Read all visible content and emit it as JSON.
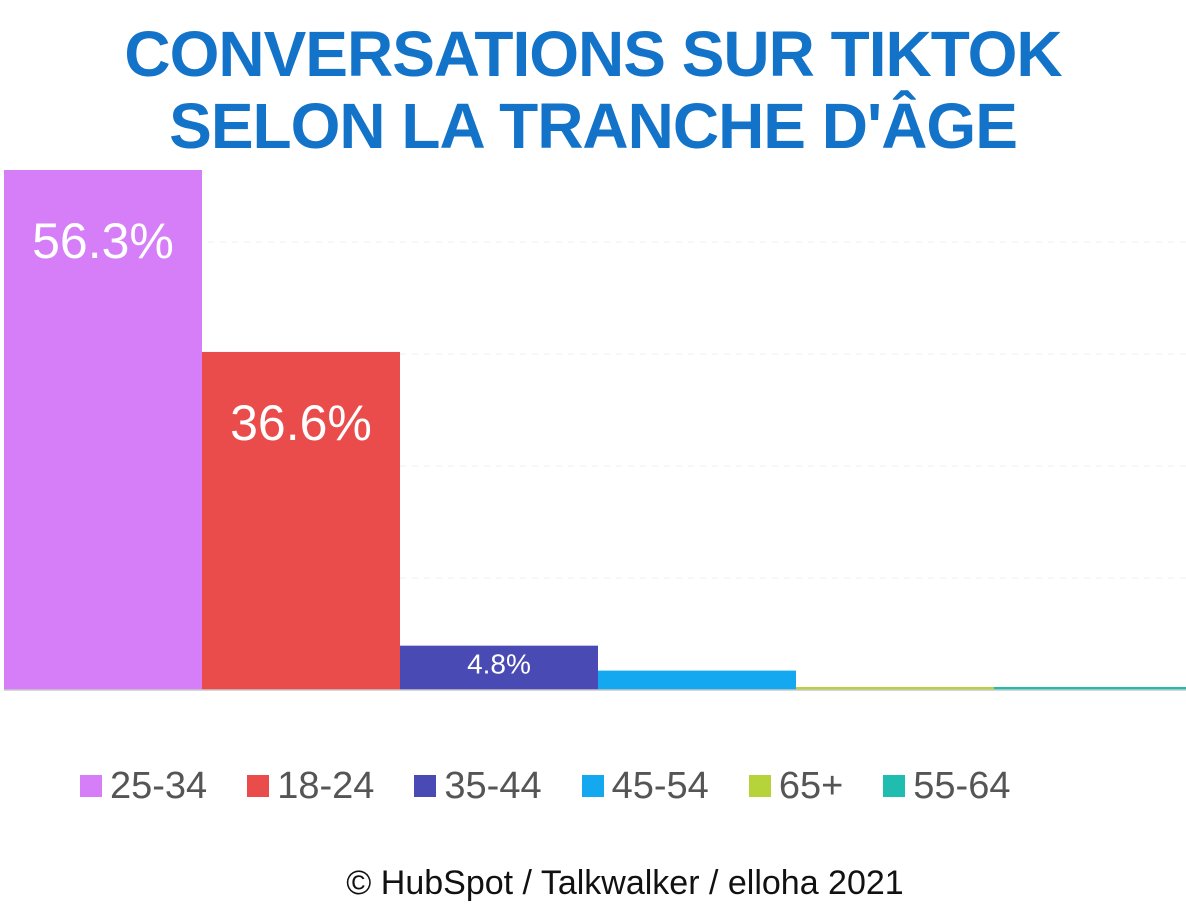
{
  "title": {
    "line1": "CONVERSATIONS SUR TIKTOK",
    "line2": "SELON LA TRANCHE D'ÂGE"
  },
  "chart_data": {
    "type": "bar",
    "categories": [
      "25-34",
      "18-24",
      "35-44",
      "45-54",
      "65+",
      "55-64"
    ],
    "values": [
      56.3,
      36.6,
      4.8,
      2.1,
      0.2,
      0.3
    ],
    "data_labels": [
      "56.3%",
      "36.6%",
      "4.8%",
      "",
      "",
      ""
    ],
    "colors": [
      "#d57ef7",
      "#e94c4b",
      "#4a4ab5",
      "#14a8f0",
      "#b6d43a",
      "#1fbdb0"
    ],
    "ylim": [
      0,
      60
    ],
    "grid": true,
    "legend_position": "bottom"
  },
  "legend": [
    {
      "label": "25-34",
      "color": "#d57ef7"
    },
    {
      "label": "18-24",
      "color": "#e94c4b"
    },
    {
      "label": "35-44",
      "color": "#4a4ab5"
    },
    {
      "label": "45-54",
      "color": "#14a8f0"
    },
    {
      "label": "65+",
      "color": "#b6d43a"
    },
    {
      "label": "55-64",
      "color": "#1fbdb0"
    }
  ],
  "source": "© HubSpot / Talkwalker / elloha 2021"
}
